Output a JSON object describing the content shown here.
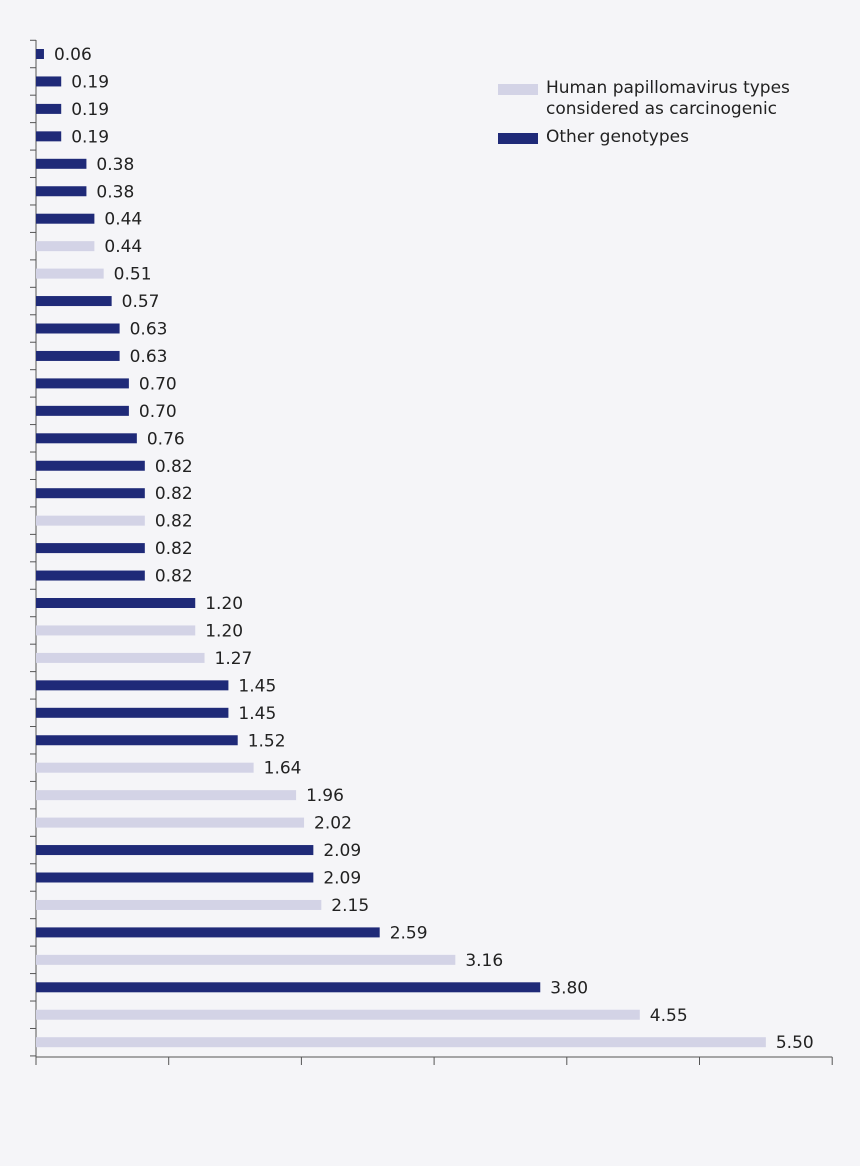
{
  "chart_data": {
    "type": "bar",
    "orientation": "horizontal",
    "title": "",
    "xlabel": "",
    "ylabel": "",
    "xlim": [
      0,
      6
    ],
    "xticks": [
      0,
      1,
      2,
      3,
      4,
      5,
      6
    ],
    "grid": false,
    "legend_position": "top-right",
    "series": [
      {
        "name": "Human papillomavirus types considered as carcinogenic",
        "color": "#d3d3e6"
      },
      {
        "name": "Other genotypes",
        "color": "#1f2a78"
      }
    ],
    "bars": [
      {
        "value": 0.06,
        "label": "0.06",
        "series": 1
      },
      {
        "value": 0.19,
        "label": "0.19",
        "series": 1
      },
      {
        "value": 0.19,
        "label": "0.19",
        "series": 1
      },
      {
        "value": 0.19,
        "label": "0.19",
        "series": 1
      },
      {
        "value": 0.38,
        "label": "0.38",
        "series": 1
      },
      {
        "value": 0.38,
        "label": "0.38",
        "series": 1
      },
      {
        "value": 0.44,
        "label": "0.44",
        "series": 1
      },
      {
        "value": 0.44,
        "label": "0.44",
        "series": 0
      },
      {
        "value": 0.51,
        "label": "0.51",
        "series": 0
      },
      {
        "value": 0.57,
        "label": "0.57",
        "series": 1
      },
      {
        "value": 0.63,
        "label": "0.63",
        "series": 1
      },
      {
        "value": 0.63,
        "label": "0.63",
        "series": 1
      },
      {
        "value": 0.7,
        "label": "0.70",
        "series": 1
      },
      {
        "value": 0.7,
        "label": "0.70",
        "series": 1
      },
      {
        "value": 0.76,
        "label": "0.76",
        "series": 1
      },
      {
        "value": 0.82,
        "label": "0.82",
        "series": 1
      },
      {
        "value": 0.82,
        "label": "0.82",
        "series": 1
      },
      {
        "value": 0.82,
        "label": "0.82",
        "series": 0
      },
      {
        "value": 0.82,
        "label": "0.82",
        "series": 1
      },
      {
        "value": 0.82,
        "label": "0.82",
        "series": 1
      },
      {
        "value": 1.2,
        "label": "1.20",
        "series": 1
      },
      {
        "value": 1.2,
        "label": "1.20",
        "series": 0
      },
      {
        "value": 1.27,
        "label": "1.27",
        "series": 0
      },
      {
        "value": 1.45,
        "label": "1.45",
        "series": 1
      },
      {
        "value": 1.45,
        "label": "1.45",
        "series": 1
      },
      {
        "value": 1.52,
        "label": "1.52",
        "series": 1
      },
      {
        "value": 1.64,
        "label": "1.64",
        "series": 0
      },
      {
        "value": 1.96,
        "label": "1.96",
        "series": 0
      },
      {
        "value": 2.02,
        "label": "2.02",
        "series": 0
      },
      {
        "value": 2.09,
        "label": "2.09",
        "series": 1
      },
      {
        "value": 2.09,
        "label": "2.09",
        "series": 1
      },
      {
        "value": 2.15,
        "label": "2.15",
        "series": 0
      },
      {
        "value": 2.59,
        "label": "2.59",
        "series": 1
      },
      {
        "value": 3.16,
        "label": "3.16",
        "series": 0
      },
      {
        "value": 3.8,
        "label": "3.80",
        "series": 1
      },
      {
        "value": 4.55,
        "label": "4.55",
        "series": 0
      },
      {
        "value": 5.5,
        "label": "5.50",
        "series": 0
      }
    ]
  },
  "legend": {
    "carcinogenic_label": "Human papillomavirus types considered as carcinogenic",
    "other_label": "Other genotypes"
  }
}
